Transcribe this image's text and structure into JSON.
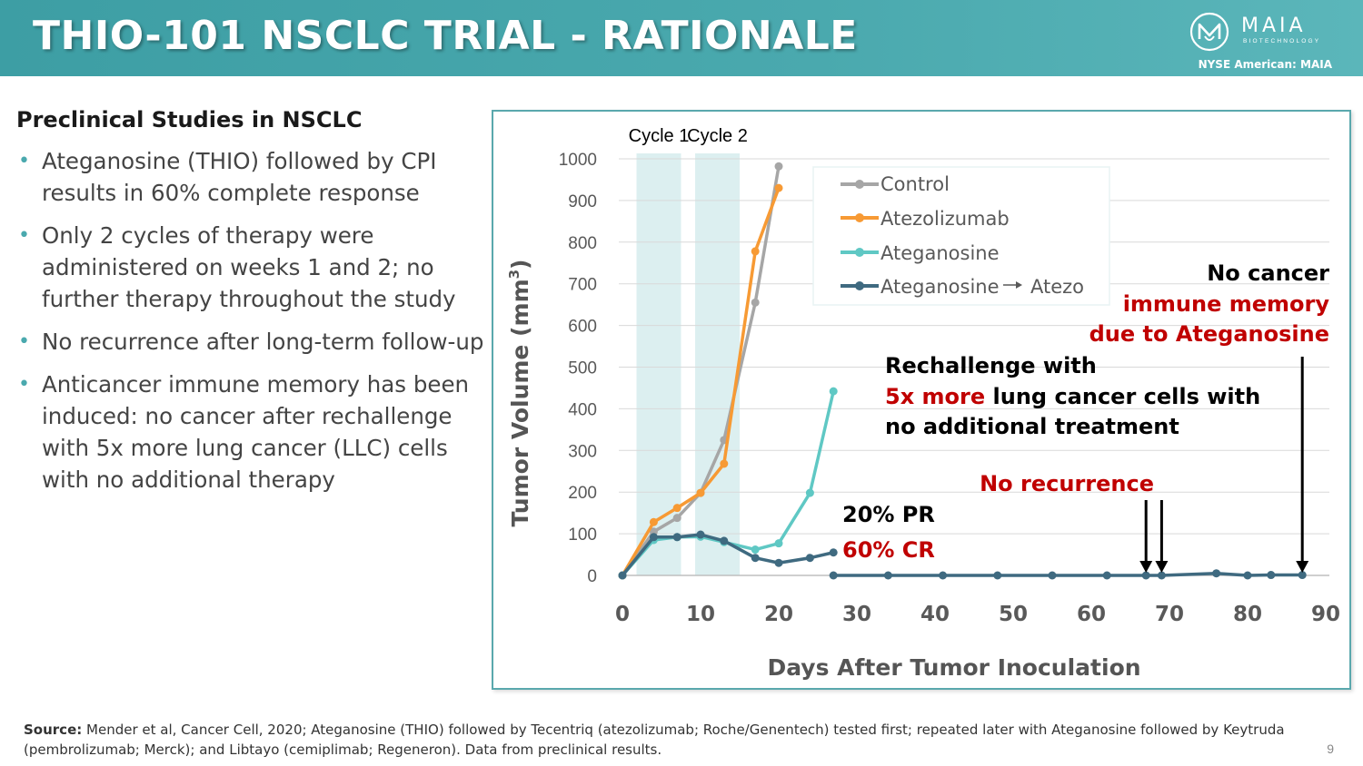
{
  "header": {
    "title": "THIO-101 NSCLC TRIAL - RATIONALE",
    "logo_name": "MAIA",
    "logo_sub": "BIOTECHNOLOGY",
    "ticker": "NYSE American: MAIA"
  },
  "left": {
    "heading": "Preclinical Studies in NSCLC",
    "bullets": [
      "Ateganosine (THIO) followed by CPI results in 60% complete response",
      "Only 2 cycles of therapy were administered on weeks 1 and 2; no further therapy throughout the study",
      "No recurrence after long-term follow-up",
      "Anticancer immune memory has been induced: no cancer after rechallenge with 5x more lung cancer (LLC) cells with no additional therapy"
    ]
  },
  "colors": {
    "control": "#a6a6a6",
    "atezolizumab": "#f79a34",
    "ateganosine": "#5fc8c4",
    "combo": "#3f6a80",
    "red": "#c00000",
    "cycle_band": "#dceff0"
  },
  "chart_data": {
    "type": "line",
    "xlabel": "Days After Tumor Inoculation",
    "ylabel": "Tumor Volume (mm",
    "ylabel_sup": "3",
    "ylabel_close": ")",
    "xlim": [
      0,
      90
    ],
    "ylim": [
      0,
      1000
    ],
    "xticks": [
      0,
      10,
      20,
      30,
      40,
      50,
      60,
      70,
      80,
      90
    ],
    "yticks": [
      0,
      100,
      200,
      300,
      400,
      500,
      600,
      700,
      800,
      900,
      1000
    ],
    "cycles": [
      {
        "label": "Cycle 1",
        "start": 1.8,
        "end": 7.5
      },
      {
        "label": "Cycle 2",
        "start": 9.3,
        "end": 15
      }
    ],
    "series": [
      {
        "name": "Control",
        "key": "control",
        "points": [
          [
            0,
            0
          ],
          [
            4,
            105
          ],
          [
            7,
            138
          ],
          [
            10,
            198
          ],
          [
            13,
            325
          ],
          [
            17,
            655
          ],
          [
            20,
            982
          ]
        ]
      },
      {
        "name": "Atezolizumab",
        "key": "atezolizumab",
        "points": [
          [
            0,
            0
          ],
          [
            4,
            128
          ],
          [
            7,
            162
          ],
          [
            10,
            198
          ],
          [
            13,
            268
          ],
          [
            17,
            778
          ],
          [
            20,
            930
          ]
        ]
      },
      {
        "name": "Ateganosine",
        "key": "ateganosine",
        "points": [
          [
            0,
            0
          ],
          [
            4,
            85
          ],
          [
            7,
            92
          ],
          [
            10,
            93
          ],
          [
            13,
            80
          ],
          [
            17,
            62
          ],
          [
            20,
            77
          ],
          [
            24,
            198
          ],
          [
            27,
            442
          ]
        ]
      },
      {
        "name": "Ateganosine → Atezo",
        "key": "combo",
        "points": [
          [
            0,
            0
          ],
          [
            4,
            92
          ],
          [
            7,
            92
          ],
          [
            10,
            98
          ],
          [
            13,
            83
          ],
          [
            17,
            42
          ],
          [
            20,
            30
          ],
          [
            24,
            42
          ],
          [
            27,
            55
          ]
        ]
      },
      {
        "name": "Ateganosine → Atezo (rechallenge)",
        "key": "combo",
        "points": [
          [
            27,
            0
          ],
          [
            34,
            0
          ],
          [
            41,
            0
          ],
          [
            48,
            0
          ],
          [
            55,
            0
          ],
          [
            62,
            0
          ],
          [
            67,
            0
          ],
          [
            69,
            0
          ],
          [
            76,
            5
          ],
          [
            80,
            0
          ],
          [
            83,
            1
          ],
          [
            87,
            1
          ]
        ]
      }
    ],
    "legend": [
      "Control",
      "Atezolizumab",
      "Ateganosine",
      "Ateganosine",
      "Atezo"
    ],
    "annotations": {
      "pr": "20% PR",
      "cr": "60% CR",
      "no_recurrence": "No recurrence",
      "rechallenge_line1": "Rechallenge with",
      "rechallenge_red": "5x more",
      "rechallenge_line2_rest": " lung cancer cells with",
      "rechallenge_line3": "no additional treatment",
      "memory_line1": "No cancer",
      "memory_line2": "immune memory",
      "memory_line3": "due to Ateganosine"
    },
    "arrows_at_days": [
      67,
      69,
      87
    ]
  },
  "footer": {
    "source_label": "Source:",
    "source_text": " Mender et al, Cancer Cell, 2020; Ateganosine (THIO) followed by Tecentriq (atezolizumab; Roche/Genentech) tested first; repeated later with Ateganosine followed by Keytruda (pembrolizumab; Merck); and Libtayo (cemiplimab; Regeneron). Data from preclinical results.",
    "page": "9"
  }
}
